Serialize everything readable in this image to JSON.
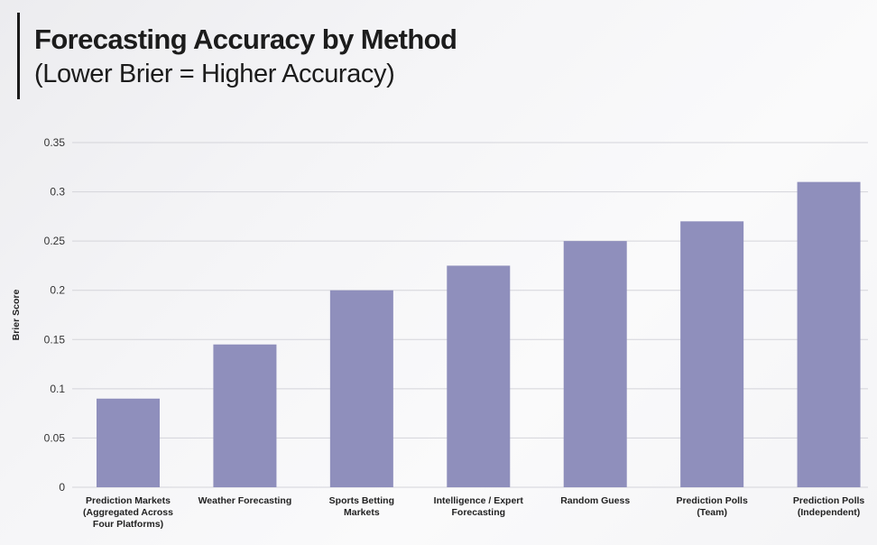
{
  "chart_data": {
    "type": "bar",
    "title": "Forecasting Accuracy by Method",
    "subtitle": "(Lower Brier = Higher Accuracy)",
    "xlabel": "",
    "ylabel": "Brier Score",
    "ylim": [
      0,
      0.35
    ],
    "yticks": [
      "0",
      "0.05",
      "0.1",
      "0.15",
      "0.2",
      "0.25",
      "0.3",
      "0.35"
    ],
    "ytick_values": [
      0,
      0.05,
      0.1,
      0.15,
      0.2,
      0.25,
      0.3,
      0.35
    ],
    "grid": true,
    "bar_color": "#8f8fbc",
    "categories": [
      [
        "Prediction Markets",
        "(Aggregated Across",
        "Four Platforms)"
      ],
      [
        "Weather Forecasting"
      ],
      [
        "Sports Betting",
        "Markets"
      ],
      [
        "Intelligence / Expert",
        "Forecasting"
      ],
      [
        "Random Guess"
      ],
      [
        "Prediction Polls",
        "(Team)"
      ],
      [
        "Prediction Polls",
        "(Independent)"
      ]
    ],
    "values": [
      0.09,
      0.145,
      0.2,
      0.225,
      0.25,
      0.27,
      0.31
    ]
  }
}
